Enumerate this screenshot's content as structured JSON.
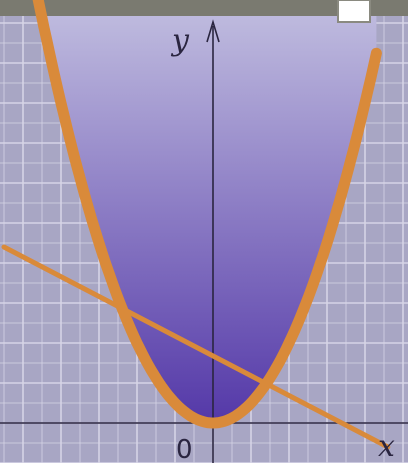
{
  "chart_data": {
    "type": "line",
    "title": "",
    "xlabel": "x",
    "ylabel": "y",
    "origin_label": "0",
    "xlim": [
      -5.5,
      4.6
    ],
    "ylim": [
      -0.55,
      10.3
    ],
    "grid": true,
    "shaded_region": "y ≥ x²",
    "series": [
      {
        "kind": "parabola",
        "x": [
          -4.6,
          -4,
          -3,
          -2,
          -1,
          0,
          1,
          2,
          3,
          4,
          4.3
        ],
        "y": [
          10.6,
          8,
          4.5,
          2,
          0.5,
          0,
          0.5,
          2,
          4.5,
          8,
          9.2
        ]
      },
      {
        "kind": "line",
        "x": [
          -5.5,
          4.6
        ],
        "y": [
          4.4,
          -0.6
        ]
      }
    ]
  },
  "colors": {
    "background": "#a8a6c4",
    "grid": "#d6d4e6",
    "region_top": "#c2bfe0",
    "region_bottom": "#5438a8",
    "curve": "#d98a3a",
    "axis": "#2a2540",
    "top_border": "#7a7a70"
  }
}
